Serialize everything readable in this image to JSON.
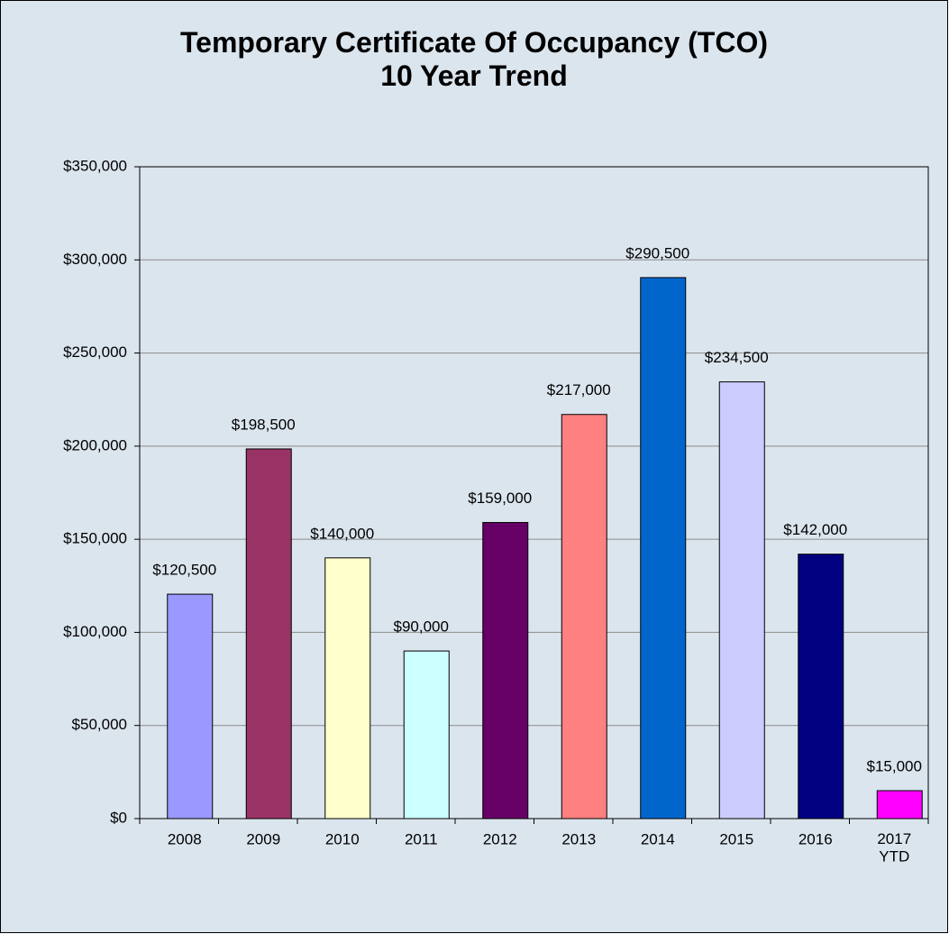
{
  "chart_data": {
    "type": "bar",
    "title": "Temporary Certificate Of Occupancy (TCO)\n10 Year Trend",
    "categories": [
      "2008",
      "2009",
      "2010",
      "2011",
      "2012",
      "2013",
      "2014",
      "2015",
      "2016",
      "2017\nYTD"
    ],
    "values": [
      120500,
      198500,
      140000,
      90000,
      159000,
      217000,
      290500,
      234500,
      142000,
      15000
    ],
    "value_labels": [
      "$120,500",
      "$198,500",
      "$140,000",
      "$90,000",
      "$159,000",
      "$217,000",
      "$290,500",
      "$234,500",
      "$142,000",
      "$15,000"
    ],
    "colors": [
      "#9999ff",
      "#993366",
      "#ffffcc",
      "#ccffff",
      "#660066",
      "#ff8080",
      "#0066cc",
      "#ccccff",
      "#000080",
      "#ff00ff"
    ],
    "ylim": [
      0,
      350000
    ],
    "yticks": [
      {
        "value": 0,
        "label": "$0"
      },
      {
        "value": 50000,
        "label": "$50,000"
      },
      {
        "value": 100000,
        "label": "$100,000"
      },
      {
        "value": 150000,
        "label": "$150,000"
      },
      {
        "value": 200000,
        "label": "$200,000"
      },
      {
        "value": 250000,
        "label": "$250,000"
      },
      {
        "value": 300000,
        "label": "$300,000"
      },
      {
        "value": 350000,
        "label": "$350,000"
      }
    ],
    "grid": true
  }
}
